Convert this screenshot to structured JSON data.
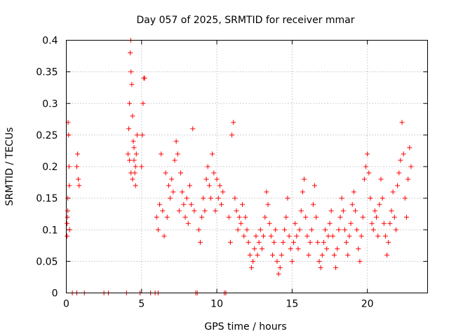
{
  "chart_data": {
    "type": "scatter",
    "title": "Day 057 of 2025, SRMTID for receiver mmar",
    "xlabel": "GPS time / hours",
    "ylabel": "SRMTID / TECUs",
    "xlim": [
      0,
      24
    ],
    "ylim": [
      0,
      0.4
    ],
    "x_ticks": [
      0,
      5,
      10,
      15,
      20
    ],
    "x_tick_labels": [
      "0",
      "5",
      "10",
      "15",
      "20"
    ],
    "y_ticks": [
      0,
      0.05,
      0.1,
      0.15,
      0.2,
      0.25,
      0.3,
      0.35,
      0.4
    ],
    "y_tick_labels": [
      "0",
      "0.05",
      "0.1",
      "0.15",
      "0.2",
      "0.25",
      "0.3",
      "0.35",
      "0.4"
    ],
    "grid": true,
    "marker": "+",
    "color": "#ff0000",
    "legend": "none",
    "series": [
      {
        "name": "SRMTID",
        "points": [
          [
            0.05,
            0.09
          ],
          [
            0.08,
            0.12
          ],
          [
            0.1,
            0.15
          ],
          [
            0.12,
            0.27
          ],
          [
            0.15,
            0.25
          ],
          [
            0.18,
            0.2
          ],
          [
            0.2,
            0.17
          ],
          [
            0.22,
            0.1
          ],
          [
            0.1,
            0.13
          ],
          [
            0.05,
            0.11
          ],
          [
            0.4,
            0.0
          ],
          [
            0.7,
            0.0
          ],
          [
            0.7,
            0.2
          ],
          [
            0.75,
            0.22
          ],
          [
            0.8,
            0.18
          ],
          [
            0.85,
            0.17
          ],
          [
            1.2,
            0.0
          ],
          [
            2.5,
            0.0
          ],
          [
            2.8,
            0.0
          ],
          [
            4.0,
            0.0
          ],
          [
            4.1,
            0.22
          ],
          [
            4.15,
            0.26
          ],
          [
            4.2,
            0.3
          ],
          [
            4.25,
            0.38
          ],
          [
            4.28,
            0.4
          ],
          [
            4.3,
            0.35
          ],
          [
            4.35,
            0.33
          ],
          [
            4.4,
            0.28
          ],
          [
            4.45,
            0.24
          ],
          [
            4.5,
            0.21
          ],
          [
            4.55,
            0.19
          ],
          [
            4.6,
            0.2
          ],
          [
            4.65,
            0.22
          ],
          [
            4.7,
            0.25
          ],
          [
            4.2,
            0.21
          ],
          [
            4.3,
            0.19
          ],
          [
            4.4,
            0.18
          ],
          [
            4.5,
            0.23
          ],
          [
            4.6,
            0.17
          ],
          [
            4.9,
            0.0
          ],
          [
            5.0,
            0.2
          ],
          [
            5.05,
            0.25
          ],
          [
            5.1,
            0.3
          ],
          [
            5.15,
            0.34
          ],
          [
            5.2,
            0.34
          ],
          [
            5.6,
            0.0
          ],
          [
            5.9,
            0.0
          ],
          [
            6.1,
            0.0
          ],
          [
            6.0,
            0.12
          ],
          [
            6.1,
            0.1
          ],
          [
            6.2,
            0.14
          ],
          [
            6.3,
            0.22
          ],
          [
            6.4,
            0.13
          ],
          [
            6.5,
            0.09
          ],
          [
            6.6,
            0.19
          ],
          [
            6.7,
            0.12
          ],
          [
            6.8,
            0.17
          ],
          [
            6.9,
            0.15
          ],
          [
            7.0,
            0.18
          ],
          [
            7.1,
            0.16
          ],
          [
            7.2,
            0.21
          ],
          [
            7.3,
            0.24
          ],
          [
            7.4,
            0.22
          ],
          [
            7.5,
            0.13
          ],
          [
            7.6,
            0.19
          ],
          [
            7.7,
            0.16
          ],
          [
            7.8,
            0.14
          ],
          [
            7.9,
            0.12
          ],
          [
            8.0,
            0.15
          ],
          [
            8.1,
            0.11
          ],
          [
            8.2,
            0.17
          ],
          [
            8.3,
            0.14
          ],
          [
            8.4,
            0.26
          ],
          [
            8.5,
            0.13
          ],
          [
            8.6,
            0.0
          ],
          [
            8.7,
            0.0
          ],
          [
            8.8,
            0.1
          ],
          [
            8.9,
            0.08
          ],
          [
            9.0,
            0.12
          ],
          [
            9.1,
            0.15
          ],
          [
            9.2,
            0.13
          ],
          [
            9.3,
            0.18
          ],
          [
            9.4,
            0.2
          ],
          [
            9.5,
            0.17
          ],
          [
            9.6,
            0.15
          ],
          [
            9.7,
            0.22
          ],
          [
            9.8,
            0.19
          ],
          [
            9.9,
            0.13
          ],
          [
            10.0,
            0.18
          ],
          [
            10.1,
            0.15
          ],
          [
            10.2,
            0.17
          ],
          [
            10.3,
            0.14
          ],
          [
            10.4,
            0.16
          ],
          [
            10.5,
            0.0
          ],
          [
            10.6,
            0.0
          ],
          [
            10.8,
            0.12
          ],
          [
            10.9,
            0.08
          ],
          [
            11.0,
            0.25
          ],
          [
            11.1,
            0.27
          ],
          [
            11.2,
            0.15
          ],
          [
            11.3,
            0.13
          ],
          [
            11.4,
            0.1
          ],
          [
            11.5,
            0.12
          ],
          [
            11.6,
            0.11
          ],
          [
            11.7,
            0.14
          ],
          [
            11.8,
            0.09
          ],
          [
            11.9,
            0.12
          ],
          [
            12.0,
            0.1
          ],
          [
            12.1,
            0.08
          ],
          [
            12.2,
            0.06
          ],
          [
            12.3,
            0.04
          ],
          [
            12.4,
            0.05
          ],
          [
            12.5,
            0.07
          ],
          [
            12.6,
            0.09
          ],
          [
            12.7,
            0.06
          ],
          [
            12.8,
            0.08
          ],
          [
            12.9,
            0.1
          ],
          [
            13.0,
            0.07
          ],
          [
            13.1,
            0.09
          ],
          [
            13.2,
            0.12
          ],
          [
            13.3,
            0.16
          ],
          [
            13.4,
            0.14
          ],
          [
            13.5,
            0.11
          ],
          [
            13.6,
            0.09
          ],
          [
            13.7,
            0.06
          ],
          [
            13.8,
            0.08
          ],
          [
            13.9,
            0.1
          ],
          [
            14.0,
            0.05
          ],
          [
            14.1,
            0.03
          ],
          [
            14.2,
            0.04
          ],
          [
            14.3,
            0.06
          ],
          [
            14.4,
            0.08
          ],
          [
            14.5,
            0.1
          ],
          [
            14.6,
            0.12
          ],
          [
            14.7,
            0.15
          ],
          [
            14.8,
            0.09
          ],
          [
            14.9,
            0.07
          ],
          [
            15.0,
            0.05
          ],
          [
            15.1,
            0.08
          ],
          [
            15.2,
            0.11
          ],
          [
            15.3,
            0.09
          ],
          [
            15.4,
            0.07
          ],
          [
            15.5,
            0.1
          ],
          [
            15.6,
            0.13
          ],
          [
            15.7,
            0.16
          ],
          [
            15.8,
            0.18
          ],
          [
            15.9,
            0.12
          ],
          [
            16.0,
            0.09
          ],
          [
            16.1,
            0.06
          ],
          [
            16.2,
            0.08
          ],
          [
            16.3,
            0.1
          ],
          [
            16.4,
            0.14
          ],
          [
            16.5,
            0.17
          ],
          [
            16.6,
            0.12
          ],
          [
            16.7,
            0.08
          ],
          [
            16.8,
            0.05
          ],
          [
            16.9,
            0.04
          ],
          [
            17.0,
            0.06
          ],
          [
            17.1,
            0.08
          ],
          [
            17.2,
            0.1
          ],
          [
            17.3,
            0.07
          ],
          [
            17.4,
            0.09
          ],
          [
            17.5,
            0.11
          ],
          [
            17.6,
            0.13
          ],
          [
            17.7,
            0.09
          ],
          [
            17.8,
            0.06
          ],
          [
            17.9,
            0.04
          ],
          [
            18.0,
            0.07
          ],
          [
            18.1,
            0.1
          ],
          [
            18.2,
            0.12
          ],
          [
            18.3,
            0.15
          ],
          [
            18.4,
            0.13
          ],
          [
            18.5,
            0.1
          ],
          [
            18.6,
            0.08
          ],
          [
            18.7,
            0.06
          ],
          [
            18.8,
            0.09
          ],
          [
            18.9,
            0.11
          ],
          [
            19.0,
            0.14
          ],
          [
            19.1,
            0.16
          ],
          [
            19.2,
            0.13
          ],
          [
            19.3,
            0.1
          ],
          [
            19.4,
            0.07
          ],
          [
            19.5,
            0.05
          ],
          [
            19.6,
            0.09
          ],
          [
            19.7,
            0.12
          ],
          [
            19.8,
            0.18
          ],
          [
            19.9,
            0.2
          ],
          [
            20.0,
            0.22
          ],
          [
            20.1,
            0.19
          ],
          [
            20.2,
            0.15
          ],
          [
            20.3,
            0.11
          ],
          [
            20.4,
            0.1
          ],
          [
            20.5,
            0.13
          ],
          [
            20.6,
            0.12
          ],
          [
            20.7,
            0.09
          ],
          [
            20.8,
            0.14
          ],
          [
            20.9,
            0.18
          ],
          [
            21.0,
            0.15
          ],
          [
            21.1,
            0.11
          ],
          [
            21.2,
            0.09
          ],
          [
            21.3,
            0.06
          ],
          [
            21.4,
            0.08
          ],
          [
            21.5,
            0.11
          ],
          [
            21.6,
            0.13
          ],
          [
            21.7,
            0.16
          ],
          [
            21.8,
            0.12
          ],
          [
            21.9,
            0.1
          ],
          [
            22.0,
            0.17
          ],
          [
            22.1,
            0.19
          ],
          [
            22.2,
            0.21
          ],
          [
            22.3,
            0.27
          ],
          [
            22.4,
            0.22
          ],
          [
            22.5,
            0.15
          ],
          [
            22.6,
            0.12
          ],
          [
            22.7,
            0.18
          ],
          [
            22.8,
            0.23
          ],
          [
            22.9,
            0.2
          ]
        ]
      }
    ]
  }
}
